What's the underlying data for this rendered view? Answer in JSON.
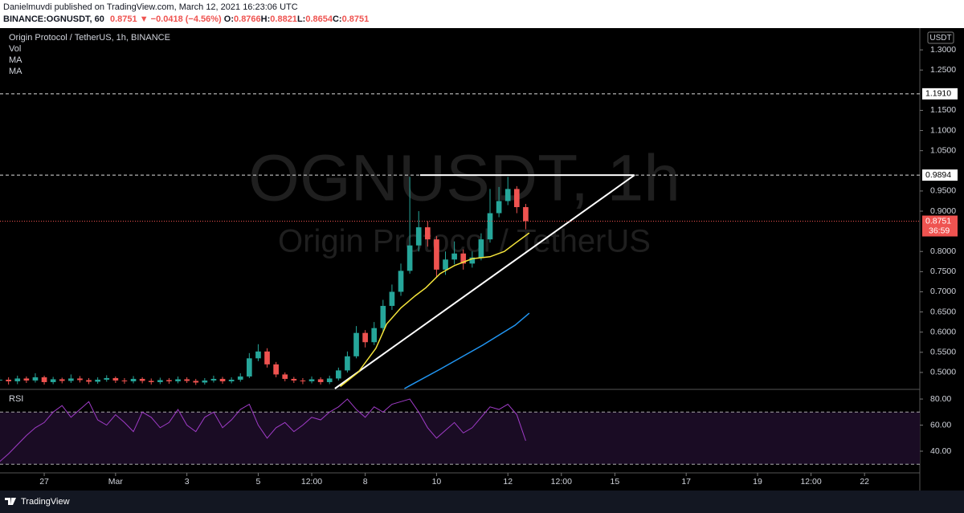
{
  "header": {
    "published": "Danielmuvdi published on TradingView.com, March 12, 2021 16:23:06 UTC",
    "symbol": "BINANCE:OGNUSDT, 60",
    "last": "0.8751",
    "arrow": "▼",
    "change": "−0.0418 (−4.56%)",
    "ohlc": [
      {
        "label": "O:",
        "value": "0.8766"
      },
      {
        "label": "H:",
        "value": "0.8821"
      },
      {
        "label": "L:",
        "value": "0.8654"
      },
      {
        "label": "C:",
        "value": "0.8751"
      }
    ]
  },
  "chart_data": [
    {
      "type": "candlestick",
      "legend": [
        "Origin Protocol / TetherUS, 1h, BINANCE",
        "Vol",
        "MA",
        "MA"
      ],
      "watermark": [
        "OGNUSDT, 1h",
        "Origin Protocol / TetherUS"
      ],
      "currency": "USDT",
      "up_color": "#26a69a",
      "down_color": "#ef5350",
      "xlim": [
        25.76,
        51.55
      ],
      "ylim": [
        0.46,
        1.354
      ],
      "yticks": [
        {
          "value": 0.5,
          "label": "0.5000"
        },
        {
          "value": 0.55,
          "label": "0.5500"
        },
        {
          "value": 0.6,
          "label": "0.6000"
        },
        {
          "value": 0.65,
          "label": "0.6500"
        },
        {
          "value": 0.7,
          "label": "0.7000"
        },
        {
          "value": 0.75,
          "label": "0.7500"
        },
        {
          "value": 0.8,
          "label": "0.8000"
        },
        {
          "value": 0.9,
          "label": "0.9000"
        },
        {
          "value": 0.95,
          "label": "0.9500"
        },
        {
          "value": 1.05,
          "label": "1.0500"
        },
        {
          "value": 1.1,
          "label": "1.1000"
        },
        {
          "value": 1.15,
          "label": "1.1500"
        },
        {
          "value": 1.25,
          "label": "1.2500"
        },
        {
          "value": 1.3,
          "label": "1.3000"
        }
      ],
      "x": [
        25.75,
        26,
        26.25,
        26.5,
        26.75,
        27,
        27.25,
        27.5,
        27.75,
        28,
        28.25,
        28.5,
        28.75,
        29,
        29.25,
        29.5,
        29.75,
        30,
        30.25,
        30.5,
        30.75,
        31,
        31.25,
        31.5,
        31.75,
        32,
        32.25,
        32.5,
        32.75,
        33,
        33.25,
        33.5,
        33.75,
        34,
        34.25,
        34.5,
        34.75,
        35,
        35.25,
        35.5,
        35.75,
        36,
        36.25,
        36.5,
        36.75,
        37,
        37.25,
        37.5,
        37.75,
        38,
        38.25,
        38.5,
        38.75,
        39,
        39.25,
        39.5,
        39.75,
        40,
        40.25,
        40.5
      ],
      "open": [
        0.48,
        0.482,
        0.478,
        0.485,
        0.48,
        0.488,
        0.476,
        0.483,
        0.479,
        0.485,
        0.481,
        0.477,
        0.482,
        0.486,
        0.48,
        0.478,
        0.484,
        0.479,
        0.476,
        0.481,
        0.478,
        0.483,
        0.479,
        0.475,
        0.48,
        0.484,
        0.478,
        0.482,
        0.49,
        0.535,
        0.552,
        0.52,
        0.495,
        0.484,
        0.48,
        0.478,
        0.483,
        0.476,
        0.485,
        0.505,
        0.54,
        0.598,
        0.575,
        0.61,
        0.665,
        0.7,
        0.752,
        0.815,
        0.86,
        0.83,
        0.755,
        0.78,
        0.795,
        0.77,
        0.785,
        0.83,
        0.895,
        0.925,
        0.955,
        0.91
      ],
      "high": [
        0.49,
        0.488,
        0.492,
        0.49,
        0.498,
        0.492,
        0.489,
        0.487,
        0.495,
        0.491,
        0.486,
        0.488,
        0.493,
        0.49,
        0.486,
        0.491,
        0.488,
        0.485,
        0.487,
        0.486,
        0.49,
        0.488,
        0.484,
        0.486,
        0.492,
        0.489,
        0.488,
        0.498,
        0.548,
        0.57,
        0.56,
        0.526,
        0.5,
        0.489,
        0.486,
        0.49,
        0.488,
        0.492,
        0.512,
        0.552,
        0.615,
        0.605,
        0.625,
        0.68,
        0.718,
        0.77,
        0.985,
        0.9,
        0.875,
        0.838,
        0.8,
        0.825,
        0.805,
        0.8,
        0.845,
        0.955,
        0.96,
        0.985,
        0.962,
        0.918
      ],
      "low": [
        0.472,
        0.47,
        0.471,
        0.474,
        0.475,
        0.47,
        0.471,
        0.473,
        0.474,
        0.475,
        0.471,
        0.472,
        0.477,
        0.474,
        0.472,
        0.473,
        0.473,
        0.47,
        0.471,
        0.472,
        0.473,
        0.474,
        0.469,
        0.47,
        0.475,
        0.472,
        0.473,
        0.477,
        0.486,
        0.528,
        0.512,
        0.488,
        0.478,
        0.474,
        0.471,
        0.473,
        0.47,
        0.471,
        0.48,
        0.5,
        0.535,
        0.562,
        0.568,
        0.602,
        0.655,
        0.69,
        0.745,
        0.8,
        0.812,
        0.735,
        0.742,
        0.768,
        0.755,
        0.76,
        0.778,
        0.822,
        0.885,
        0.915,
        0.895,
        0.855
      ],
      "close": [
        0.482,
        0.478,
        0.485,
        0.48,
        0.488,
        0.476,
        0.483,
        0.479,
        0.485,
        0.481,
        0.477,
        0.482,
        0.486,
        0.48,
        0.478,
        0.484,
        0.479,
        0.476,
        0.481,
        0.478,
        0.483,
        0.479,
        0.475,
        0.48,
        0.484,
        0.478,
        0.482,
        0.49,
        0.535,
        0.552,
        0.52,
        0.495,
        0.484,
        0.48,
        0.478,
        0.483,
        0.476,
        0.485,
        0.505,
        0.54,
        0.598,
        0.575,
        0.61,
        0.665,
        0.7,
        0.752,
        0.815,
        0.86,
        0.83,
        0.755,
        0.78,
        0.795,
        0.77,
        0.785,
        0.83,
        0.895,
        0.925,
        0.955,
        0.91,
        0.8751
      ],
      "series": [
        {
          "name": "MA",
          "color": "#f5e53b",
          "x": [
            35.3,
            35.8,
            36.3,
            36.6,
            37.0,
            37.4,
            37.7,
            38.1,
            38.5,
            39.0,
            39.5,
            39.9,
            40.2,
            40.6
          ],
          "values": [
            0.465,
            0.5,
            0.56,
            0.62,
            0.66,
            0.69,
            0.71,
            0.745,
            0.765,
            0.782,
            0.787,
            0.8,
            0.82,
            0.846
          ]
        },
        {
          "name": "MA",
          "color": "#2196f3",
          "x": [
            37.1,
            38.1,
            39.3,
            40.2,
            40.6
          ],
          "values": [
            0.46,
            0.508,
            0.568,
            0.617,
            0.647
          ]
        }
      ],
      "last_price": 0.8751,
      "countdown": "36:59",
      "levels": [
        {
          "value": 1.191,
          "label": "1.1910"
        },
        0.9894
      ],
      "triangle": {
        "x": [
          35.15,
          43.55,
          37.54
        ],
        "y": [
          0.46,
          0.9894,
          0.9894
        ]
      }
    },
    {
      "type": "line",
      "title": "RSI",
      "color": "#a03cc8",
      "band_color": "#1a0c24",
      "xlim": [
        25.76,
        51.55
      ],
      "ylim": [
        24,
        86.8
      ],
      "yticks": [
        {
          "value": 80,
          "label": "80.00"
        },
        {
          "value": 60,
          "label": "60.00"
        },
        {
          "value": 40,
          "label": "40.00"
        }
      ],
      "bands": [
        30,
        70
      ],
      "xticks": [
        {
          "value": 27,
          "label": "27"
        },
        {
          "value": 29,
          "label": "Mar"
        },
        {
          "value": 31,
          "label": "3"
        },
        {
          "value": 33,
          "label": "5"
        },
        {
          "value": 34.5,
          "label": "12:00"
        },
        {
          "value": 36,
          "label": "8"
        },
        {
          "value": 38,
          "label": "10"
        },
        {
          "value": 40,
          "label": "12"
        },
        {
          "value": 41.5,
          "label": "12:00"
        },
        {
          "value": 43,
          "label": "15"
        },
        {
          "value": 45,
          "label": "17"
        },
        {
          "value": 47,
          "label": "19"
        },
        {
          "value": 48.5,
          "label": "12:00"
        },
        {
          "value": 50,
          "label": "22"
        }
      ],
      "x": [
        25.75,
        26,
        26.25,
        26.5,
        26.75,
        27,
        27.25,
        27.5,
        27.75,
        28,
        28.25,
        28.5,
        28.75,
        29,
        29.25,
        29.5,
        29.75,
        30,
        30.25,
        30.5,
        30.75,
        31,
        31.25,
        31.5,
        31.75,
        32,
        32.25,
        32.5,
        32.75,
        33,
        33.25,
        33.5,
        33.75,
        34,
        34.25,
        34.5,
        34.75,
        35,
        35.25,
        35.5,
        35.75,
        36,
        36.25,
        36.5,
        36.75,
        37,
        37.25,
        37.5,
        37.75,
        38,
        38.25,
        38.5,
        38.75,
        39,
        39.25,
        39.5,
        39.75,
        40,
        40.25,
        40.5
      ],
      "values": [
        32,
        38,
        45,
        52,
        58,
        62,
        70,
        75,
        66,
        72,
        78,
        64,
        60,
        68,
        62,
        55,
        70,
        66,
        58,
        62,
        72,
        60,
        55,
        66,
        70,
        58,
        64,
        72,
        76,
        60,
        50,
        58,
        62,
        55,
        60,
        66,
        64,
        70,
        74,
        80,
        72,
        66,
        74,
        70,
        76,
        78,
        80,
        70,
        58,
        50,
        56,
        62,
        54,
        58,
        66,
        74,
        72,
        76,
        68,
        48
      ]
    }
  ],
  "footer": {
    "brand": "TradingView"
  }
}
